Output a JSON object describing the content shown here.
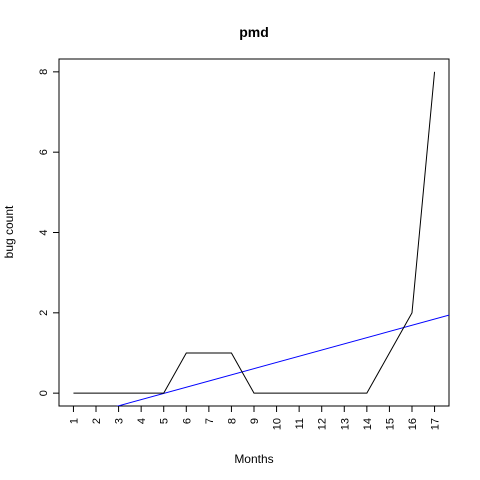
{
  "chart_data": {
    "type": "line",
    "title": "pmd",
    "xlabel": "Months",
    "ylabel": "bug count",
    "x": [
      1,
      2,
      3,
      4,
      5,
      6,
      7,
      8,
      9,
      10,
      11,
      12,
      13,
      14,
      15,
      16,
      17
    ],
    "x_tick_labels": [
      "1",
      "2",
      "3",
      "4",
      "5",
      "6",
      "7",
      "8",
      "9",
      "10",
      "11",
      "12",
      "13",
      "14",
      "15",
      "16",
      "17"
    ],
    "y_tick_labels": [
      "0",
      "2",
      "4",
      "6",
      "8"
    ],
    "y_ticks": [
      0,
      2,
      4,
      6,
      8
    ],
    "xlim": [
      0.36,
      17.64
    ],
    "ylim": [
      -0.32,
      8.32
    ],
    "grid": false,
    "series": [
      {
        "values": [
          0,
          0,
          0,
          0,
          0,
          1,
          1,
          1,
          0,
          0,
          0,
          0,
          0,
          0,
          1,
          2,
          8
        ],
        "color": "#000000"
      }
    ],
    "trend_line": {
      "slope": 0.1544,
      "intercept": -0.7794,
      "color": "#0000ff"
    }
  }
}
